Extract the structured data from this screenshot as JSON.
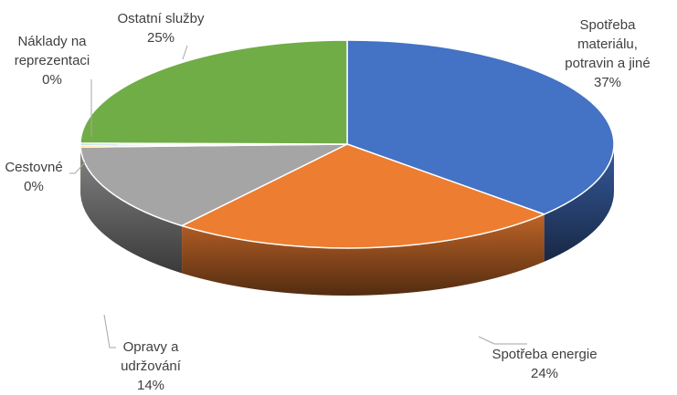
{
  "chart_data": {
    "type": "pie",
    "title": "",
    "legend": "none",
    "slices": [
      {
        "name_lines": [
          "Spotřeba",
          "materiálu,",
          "potravin a jiné"
        ],
        "label": "37%",
        "value": 37,
        "color": "#4472c4"
      },
      {
        "name_lines": [
          "Spotřeba energie"
        ],
        "label": "24%",
        "value": 24,
        "color": "#ed7d31"
      },
      {
        "name_lines": [
          "Opravy a",
          "udržování"
        ],
        "label": "14%",
        "value": 14,
        "color": "#a5a5a5"
      },
      {
        "name_lines": [
          "Cestovné"
        ],
        "label": "0%",
        "value": 0.3,
        "color": "#ffc000"
      },
      {
        "name_lines": [
          "Náklady na",
          "reprezentaci"
        ],
        "label": "0%",
        "value": 0.3,
        "color": "#5b9bd5"
      },
      {
        "name_lines": [
          "Ostatní služby"
        ],
        "label": "25%",
        "value": 25,
        "color": "#70ad47"
      }
    ]
  }
}
